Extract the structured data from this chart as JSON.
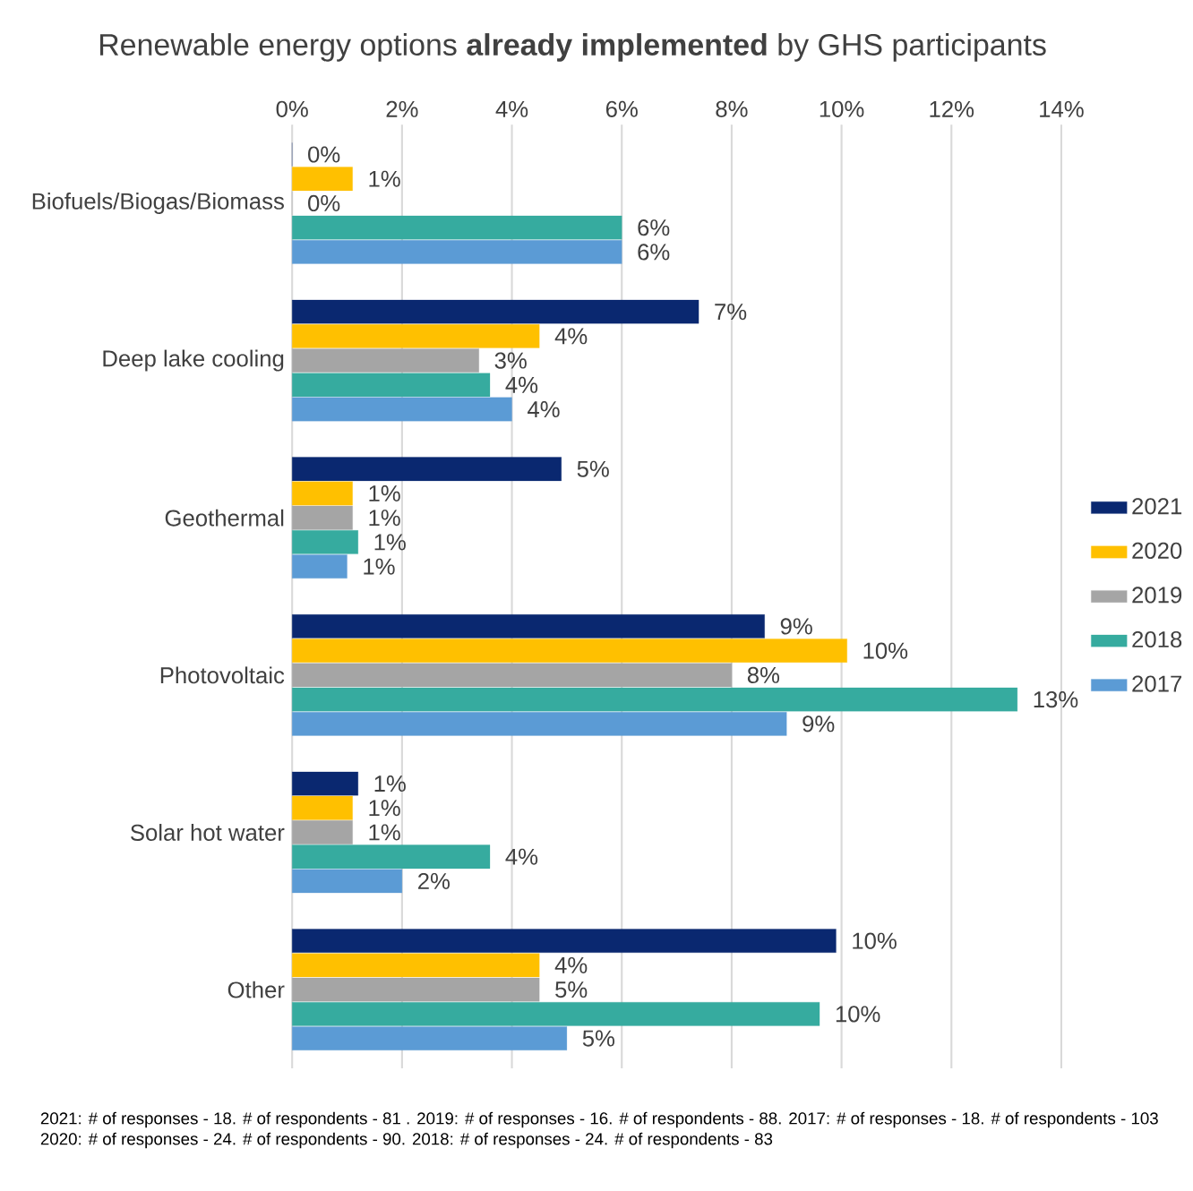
{
  "chart_data": {
    "type": "bar",
    "orientation": "horizontal",
    "title": "Renewable energy options **already implemented** by GHS participants",
    "categories": [
      "Biofuels/Biogas/Biomass",
      "Deep lake cooling",
      "Geothermal",
      "Photovoltaic",
      "Solar hot water",
      "Other"
    ],
    "series": [
      {
        "name": "2021",
        "color": "#0a2870",
        "values": [
          0,
          7.4,
          4.9,
          8.6,
          1.2,
          9.9
        ],
        "value_labels": [
          "0%",
          "7%",
          "5%",
          "9%",
          "1%",
          "10%"
        ]
      },
      {
        "name": "2020",
        "color": "#ffc000",
        "values": [
          1.1,
          4.5,
          1.1,
          10.1,
          1.1,
          4.5
        ],
        "value_labels": [
          "1%",
          "4%",
          "1%",
          "10%",
          "1%",
          "4%"
        ]
      },
      {
        "name": "2019",
        "color": "#a5a5a5",
        "values": [
          0,
          3.4,
          1.1,
          8.0,
          1.1,
          4.5
        ],
        "value_labels": [
          "0%",
          "3%",
          "1%",
          "8%",
          "1%",
          "5%"
        ]
      },
      {
        "name": "2018",
        "color": "#36ab9f",
        "values": [
          6.0,
          3.6,
          1.2,
          13.2,
          3.6,
          9.6
        ],
        "value_labels": [
          "6%",
          "4%",
          "1%",
          "13%",
          "4%",
          "10%"
        ]
      },
      {
        "name": "2017",
        "color": "#5b9bd5",
        "values": [
          6.0,
          4.0,
          1.0,
          9.0,
          2.0,
          5.0
        ],
        "value_labels": [
          "6%",
          "4%",
          "1%",
          "9%",
          "2%",
          "5%"
        ]
      }
    ],
    "xlim": [
      0,
      14
    ],
    "xticks": [
      {
        "value": 0,
        "label": "0%"
      },
      {
        "value": 2,
        "label": "2%"
      },
      {
        "value": 4,
        "label": "4%"
      },
      {
        "value": 6,
        "label": "6%"
      },
      {
        "value": 8,
        "label": "8%"
      },
      {
        "value": 10,
        "label": "10%"
      },
      {
        "value": 12,
        "label": "12%"
      },
      {
        "value": 14,
        "label": "14%"
      }
    ],
    "grid": "x",
    "legend": "right",
    "annotations": [
      "2021: # of responses - 18. # of respondents - 81 . 2019: # of responses - 16.  # of respondents - 88. 2017: # of responses - 18. # of respondents - 103",
      "2020: # of responses - 24.   # of respondents - 90. 2018: # of responses - 24. # of respondents - 83"
    ]
  }
}
